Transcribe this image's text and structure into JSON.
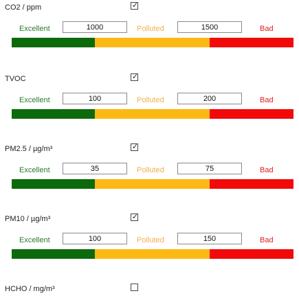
{
  "labels": {
    "excellent": "Excellent",
    "polluted": "Polluted",
    "bad": "Bad"
  },
  "colors": {
    "excellent": "#0c6a0c",
    "polluted": "#fcb814",
    "bad": "#f20a0a"
  },
  "sensors": [
    {
      "name": "CO2 / ppm",
      "checked": true,
      "checkmark": "☑",
      "excellent_value": "1000",
      "polluted_value": "1500"
    },
    {
      "name": "TVOC",
      "checked": true,
      "checkmark": "☑",
      "excellent_value": "100",
      "polluted_value": "200"
    },
    {
      "name": "PM2.5 / µg/m³",
      "checked": true,
      "checkmark": "☑",
      "excellent_value": "35",
      "polluted_value": "75"
    },
    {
      "name": "PM10 / µg/m³",
      "checked": true,
      "checkmark": "☑",
      "excellent_value": "100",
      "polluted_value": "150"
    },
    {
      "name": "HCHO / mg/m³",
      "checked": false
    }
  ]
}
